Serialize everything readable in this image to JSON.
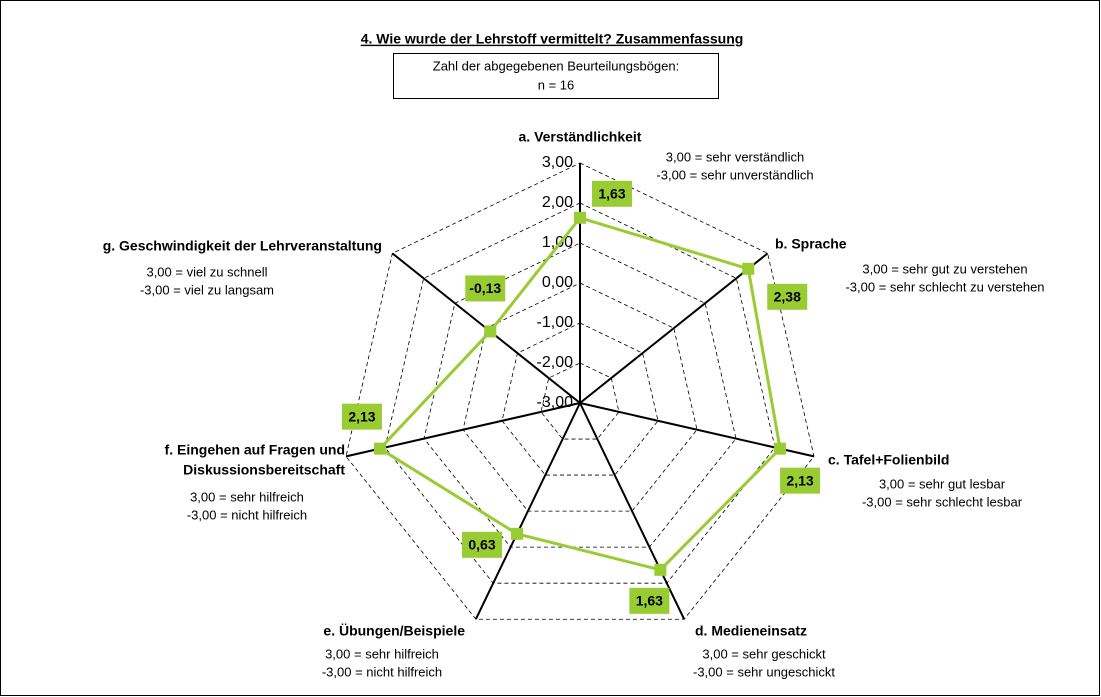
{
  "chart_data": {
    "type": "radar",
    "title": "4. Wie wurde der Lehrstoff vermittelt?  Zusammenfassung",
    "subtitle": [
      "Zahl der abgegebenen Beurteilungsbögen:",
      "n = 16"
    ],
    "categories": [
      "a. Verständlichkeit",
      "b. Sprache",
      "c. Tafel+Folienbild",
      "d. Medieneinsatz",
      "e. Übungen/Beispiele",
      [
        "f. Eingehen auf Fragen und",
        "Diskussionsbereitschaft"
      ],
      "g. Geschwindigkeit der Lehrveranstaltung"
    ],
    "axis_notes": [
      [
        "3,00 = sehr verständlich",
        "-3,00 = sehr unverständlich"
      ],
      [
        "3,00 = sehr gut zu verstehen",
        "-3,00 = sehr schlecht zu verstehen"
      ],
      [
        "3,00 = sehr gut lesbar",
        "-3,00 = sehr schlecht lesbar"
      ],
      [
        "3,00 = sehr geschickt",
        "-3,00 = sehr ungeschickt"
      ],
      [
        "3,00 = sehr hilfreich",
        "-3,00 = nicht hilfreich"
      ],
      [
        "3,00 = sehr hilfreich",
        "-3,00 = nicht hilfreich"
      ],
      [
        "3,00 = viel zu schnell",
        "-3,00 = viel zu langsam"
      ]
    ],
    "series": [
      {
        "color": "#99cc33",
        "values": [
          1.63,
          2.38,
          2.13,
          1.63,
          0.63,
          2.13,
          -0.13
        ],
        "value_labels": [
          "1,63",
          "2,38",
          "2,13",
          "1,63",
          "0,63",
          "2,13",
          "-0,13"
        ]
      }
    ],
    "ylim": [
      -3,
      3
    ],
    "yticks": [
      {
        "value": -3,
        "label": "-3,00"
      },
      {
        "value": -2,
        "label": "-2,00"
      },
      {
        "value": -1,
        "label": "-1,00"
      },
      {
        "value": 0,
        "label": "0,00"
      },
      {
        "value": 1,
        "label": "1,00"
      },
      {
        "value": 2,
        "label": "2,00"
      },
      {
        "value": 3,
        "label": "3,00"
      }
    ],
    "grid": true
  }
}
